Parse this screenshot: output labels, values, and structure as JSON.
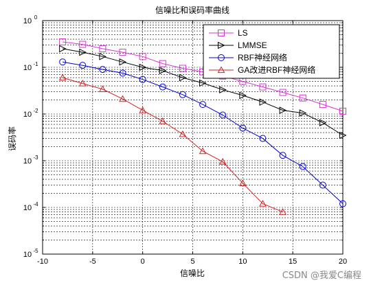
{
  "watermark": "CSDN @我爱C编程",
  "chart_data": {
    "type": "line",
    "title": "信噪比和误码率曲线",
    "xlabel": "信噪比",
    "ylabel": "误码率",
    "xlim": [
      -10,
      20
    ],
    "ylim": [
      1e-05,
      1
    ],
    "yscale": "log",
    "xticks": [
      -10,
      -5,
      0,
      5,
      10,
      15,
      20
    ],
    "xtick_labels": [
      "-10",
      "-5",
      "0",
      "5",
      "10",
      "15",
      "20"
    ],
    "ytick_labels": [
      {
        "base": "10",
        "exp": "-5"
      },
      {
        "base": "10",
        "exp": "-4"
      },
      {
        "base": "10",
        "exp": "-3"
      },
      {
        "base": "10",
        "exp": "-2"
      },
      {
        "base": "10",
        "exp": "-1"
      },
      {
        "base": "10",
        "exp": "0"
      }
    ],
    "grid": true,
    "legend_position": "top-right",
    "series": [
      {
        "name": "LS",
        "color": "#d633d6",
        "marker": "square",
        "x": [
          -8,
          -6,
          -4,
          -2,
          0,
          2,
          4,
          6,
          8,
          10,
          12,
          14,
          16,
          18,
          20
        ],
        "y": [
          0.35,
          0.31,
          0.25,
          0.21,
          0.17,
          0.12,
          0.095,
          0.08,
          0.065,
          0.05,
          0.038,
          0.029,
          0.022,
          0.016,
          0.0115
        ]
      },
      {
        "name": "LMMSE",
        "color": "#000000",
        "marker": "triangle-right",
        "x": [
          -8,
          -6,
          -4,
          -2,
          0,
          2,
          4,
          6,
          8,
          10,
          12,
          14,
          16,
          18,
          20
        ],
        "y": [
          0.25,
          0.21,
          0.17,
          0.13,
          0.1,
          0.085,
          0.06,
          0.046,
          0.033,
          0.025,
          0.018,
          0.012,
          0.0105,
          0.0065,
          0.0035
        ]
      },
      {
        "name": "RBF神经网络",
        "color": "#0000cc",
        "marker": "circle",
        "x": [
          -8,
          -6,
          -4,
          -2,
          0,
          2,
          4,
          6,
          8,
          10,
          12,
          14,
          16,
          18,
          20
        ],
        "y": [
          0.13,
          0.11,
          0.09,
          0.075,
          0.055,
          0.038,
          0.026,
          0.016,
          0.0095,
          0.005,
          0.003,
          0.0013,
          0.00075,
          0.0003,
          0.00012
        ]
      },
      {
        "name": "GA改进RBF神经网络",
        "color": "#d62020",
        "marker": "triangle-up",
        "x": [
          -8,
          -6,
          -4,
          -2,
          0,
          2,
          4,
          6,
          8,
          10,
          12,
          14
        ],
        "y": [
          0.06,
          0.045,
          0.034,
          0.021,
          0.012,
          0.007,
          0.0037,
          0.0016,
          0.00095,
          0.00033,
          0.00012,
          8e-05
        ]
      }
    ]
  }
}
